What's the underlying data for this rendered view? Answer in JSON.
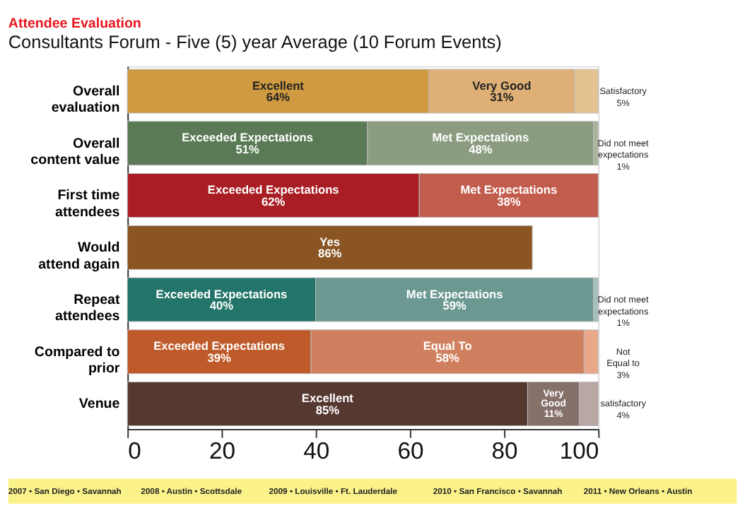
{
  "chart_data": {
    "type": "bar",
    "orientation": "horizontal",
    "stacked": true,
    "title": "Consultants Forum - Five (5) year Average (10 Forum Events)",
    "subtitle": "Attendee Evaluation",
    "categories": [
      "Overall\nevaluation",
      "Overall\ncontent value",
      "First time\nattendees",
      "Would\nattend again",
      "Repeat\nattendees",
      "Compared to\nprior",
      "Venue"
    ],
    "series": [
      {
        "values": [
          64,
          51,
          62,
          86,
          40,
          39,
          85
        ],
        "colors": [
          "#cf9a40",
          "#5a7a55",
          "#a81e24",
          "#8b5523",
          "#237469",
          "#bf5a2a",
          "#553830"
        ],
        "value_labels": [
          "Excellent\n64%",
          "Exceeded Expectations\n51%",
          "Exceeded Expectations\n62%",
          "Yes\n86%",
          "Exceeded Expectations\n40%",
          "Exceeded Expectations\n39%",
          "Excellent\n85%"
        ]
      },
      {
        "values": [
          31,
          48,
          38,
          null,
          59,
          58,
          11
        ],
        "colors": [
          "#deb075",
          "#8b9c80",
          "#c25c4c",
          null,
          "#6b9891",
          "#d0805e",
          "#86706a"
        ],
        "value_labels": [
          "Very Good\n31%",
          "Met Expectations\n48%",
          "Met Expectations\n38%",
          null,
          "Met Expectations\n59%",
          "Equal To\n58%",
          "Very\nGood\n11%"
        ]
      },
      {
        "values": [
          5,
          1,
          null,
          null,
          1,
          3,
          4
        ],
        "colors": [
          "#e3c48f",
          "#a8b59a",
          null,
          null,
          "#a4c0bc",
          "#e8a889",
          "#b8a8a4"
        ],
        "value_labels": [
          "Satisfactory\n5%",
          "Did not meet\nexpectations\n1%",
          null,
          null,
          "Did not meet\nexpectations\n1%",
          "Not\nEqual to\n3%",
          "satisfactory\n4%"
        ]
      }
    ],
    "xlim": [
      0,
      100
    ],
    "xticks": [
      0,
      20,
      40,
      60,
      80,
      100
    ],
    "grid": false,
    "annotations": [
      "2007 • San Diego • Savannah",
      "2008 • Austin • Scottsdale",
      "2009 • Louisville • Ft. Lauderdale",
      "2010 • San Francisco • Savannah",
      "2011 • New Orleans • Austin"
    ]
  }
}
